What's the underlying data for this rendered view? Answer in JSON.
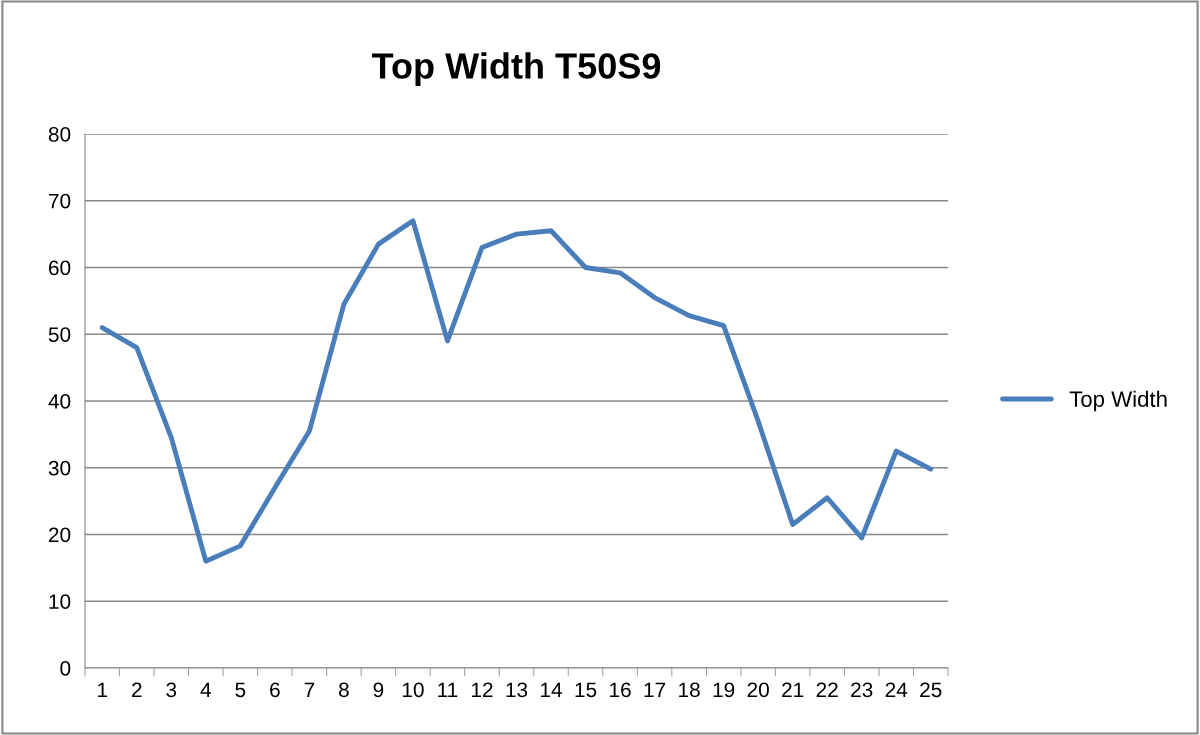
{
  "chart_data": {
    "type": "line",
    "title": "Top Width T50S9",
    "categories": [
      "1",
      "2",
      "3",
      "4",
      "5",
      "6",
      "7",
      "8",
      "9",
      "10",
      "11",
      "12",
      "13",
      "14",
      "15",
      "16",
      "17",
      "18",
      "19",
      "20",
      "21",
      "22",
      "23",
      "24",
      "25"
    ],
    "series": [
      {
        "name": "Top Width",
        "color": "#4a7ebb",
        "values": [
          51,
          48,
          34.5,
          16,
          18.3,
          27,
          35.5,
          54.5,
          63.5,
          67,
          49,
          63,
          65,
          65.5,
          60,
          59.2,
          55.5,
          52.8,
          51.3,
          37,
          21.5,
          25.5,
          19.5,
          32.5,
          29.8
        ]
      }
    ],
    "ylim": [
      0,
      80
    ],
    "yticks": [
      0,
      10,
      20,
      30,
      40,
      50,
      60,
      70,
      80
    ],
    "grid": "y",
    "legend": "right",
    "marker": "none",
    "line_style": "solid"
  }
}
